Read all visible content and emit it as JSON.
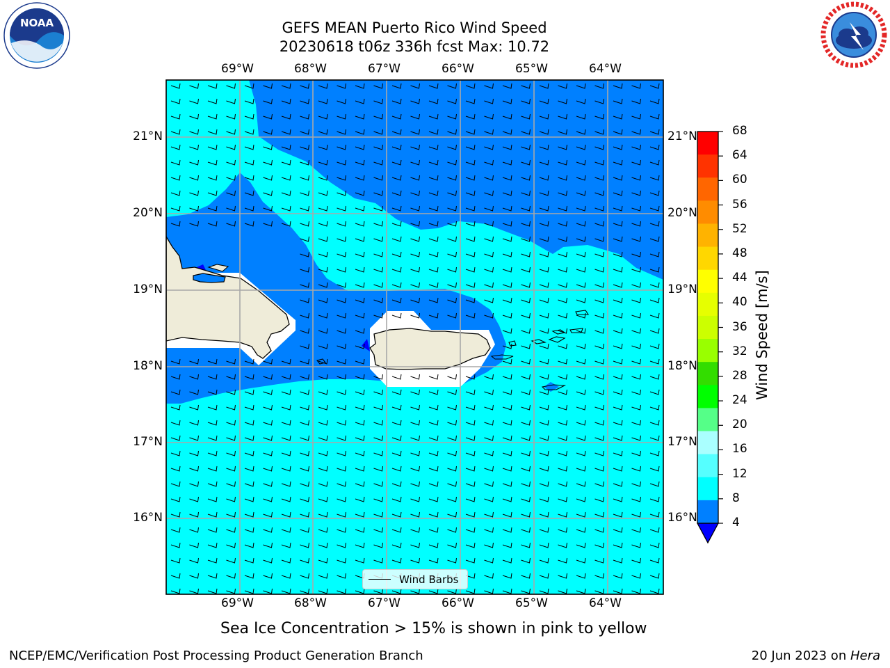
{
  "header": {
    "title_line1": "GEFS MEAN Puerto Rico Wind Speed",
    "title_line2": "20230618 t06z 336h fcst   Max: 10.72"
  },
  "logos": {
    "left": "NOAA",
    "right": "NATIONAL WEATHER SERVICE"
  },
  "map": {
    "lon_ticks": [
      "69°W",
      "68°W",
      "67°W",
      "66°W",
      "65°W",
      "64°W"
    ],
    "lat_ticks": [
      "21°N",
      "20°N",
      "19°N",
      "18°N",
      "17°N",
      "16°N"
    ],
    "legend_label": "Wind Barbs"
  },
  "colorbar": {
    "label": "Wind Speed [m/s]",
    "ticks": [
      "68",
      "64",
      "60",
      "56",
      "52",
      "48",
      "44",
      "40",
      "36",
      "32",
      "28",
      "24",
      "20",
      "16",
      "12",
      "8",
      "4"
    ],
    "colors": [
      "#ff0000",
      "#ff3300",
      "#ff6600",
      "#ff8c00",
      "#ffb300",
      "#ffd700",
      "#ffff00",
      "#e6ff00",
      "#ccff00",
      "#99ff00",
      "#33dd00",
      "#00ff00",
      "#55ff88",
      "#aaffff",
      "#55ffff",
      "#00ffff",
      "#0080ff"
    ],
    "under_color": "#0000ff"
  },
  "caption": "Sea Ice Concentration > 15% is shown in pink to yellow",
  "footer": {
    "left": "NCEP/EMC/Verification Post Processing Product Generation Branch",
    "right_date": "20 Jun 2023 on ",
    "right_host": "Hera"
  }
}
